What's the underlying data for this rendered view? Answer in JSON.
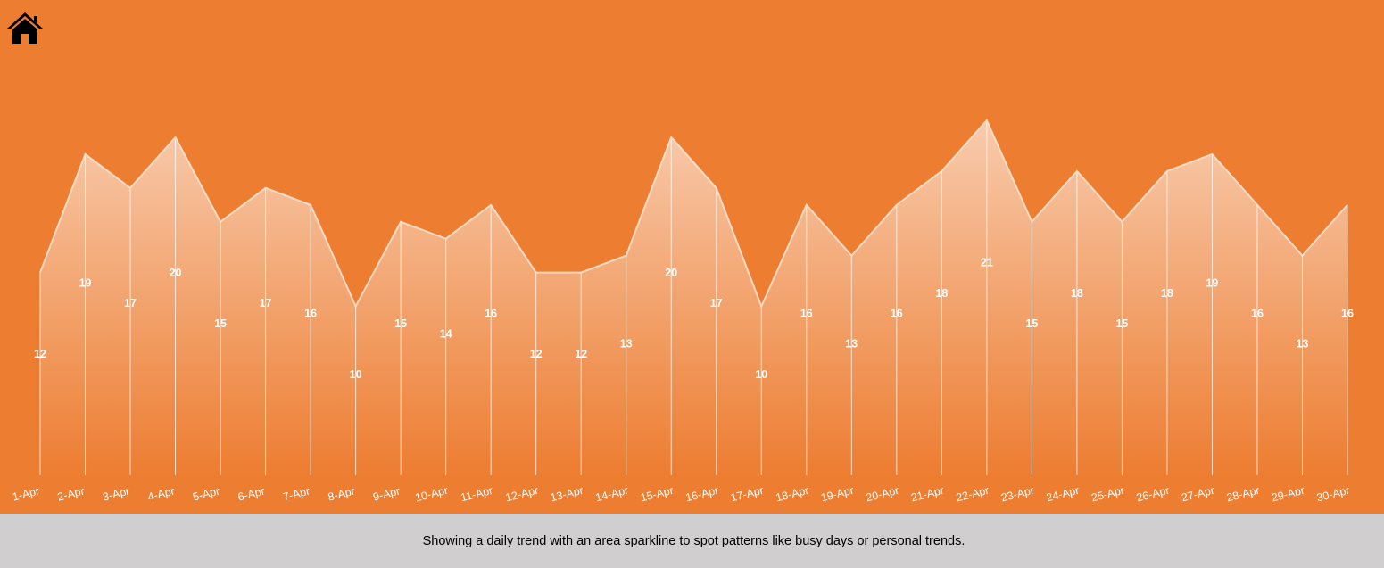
{
  "caption": "Showing a daily trend with an area sparkline to spot patterns like busy days or personal trends.",
  "icons": {
    "home": "home-icon"
  },
  "colors": {
    "background": "#ED7D31",
    "caption_bar": "#D0CECE",
    "area_top": "#F8CBAD",
    "line": "#FBE5D6",
    "label": "#FFFFFF"
  },
  "chart_data": {
    "type": "area",
    "categories": [
      "1-Apr",
      "2-Apr",
      "3-Apr",
      "4-Apr",
      "5-Apr",
      "6-Apr",
      "7-Apr",
      "8-Apr",
      "9-Apr",
      "10-Apr",
      "11-Apr",
      "12-Apr",
      "13-Apr",
      "14-Apr",
      "15-Apr",
      "16-Apr",
      "17-Apr",
      "18-Apr",
      "19-Apr",
      "20-Apr",
      "21-Apr",
      "22-Apr",
      "23-Apr",
      "24-Apr",
      "25-Apr",
      "26-Apr",
      "27-Apr",
      "28-Apr",
      "29-Apr",
      "30-Apr"
    ],
    "values": [
      12,
      19,
      17,
      20,
      15,
      17,
      16,
      10,
      15,
      14,
      16,
      12,
      12,
      13,
      20,
      17,
      10,
      16,
      13,
      16,
      18,
      21,
      15,
      18,
      15,
      18,
      19,
      16,
      13,
      16
    ],
    "title": "",
    "xlabel": "",
    "ylabel": "",
    "ylim": [
      0,
      21
    ],
    "grid": false,
    "legend": "none",
    "data_labels": true
  }
}
